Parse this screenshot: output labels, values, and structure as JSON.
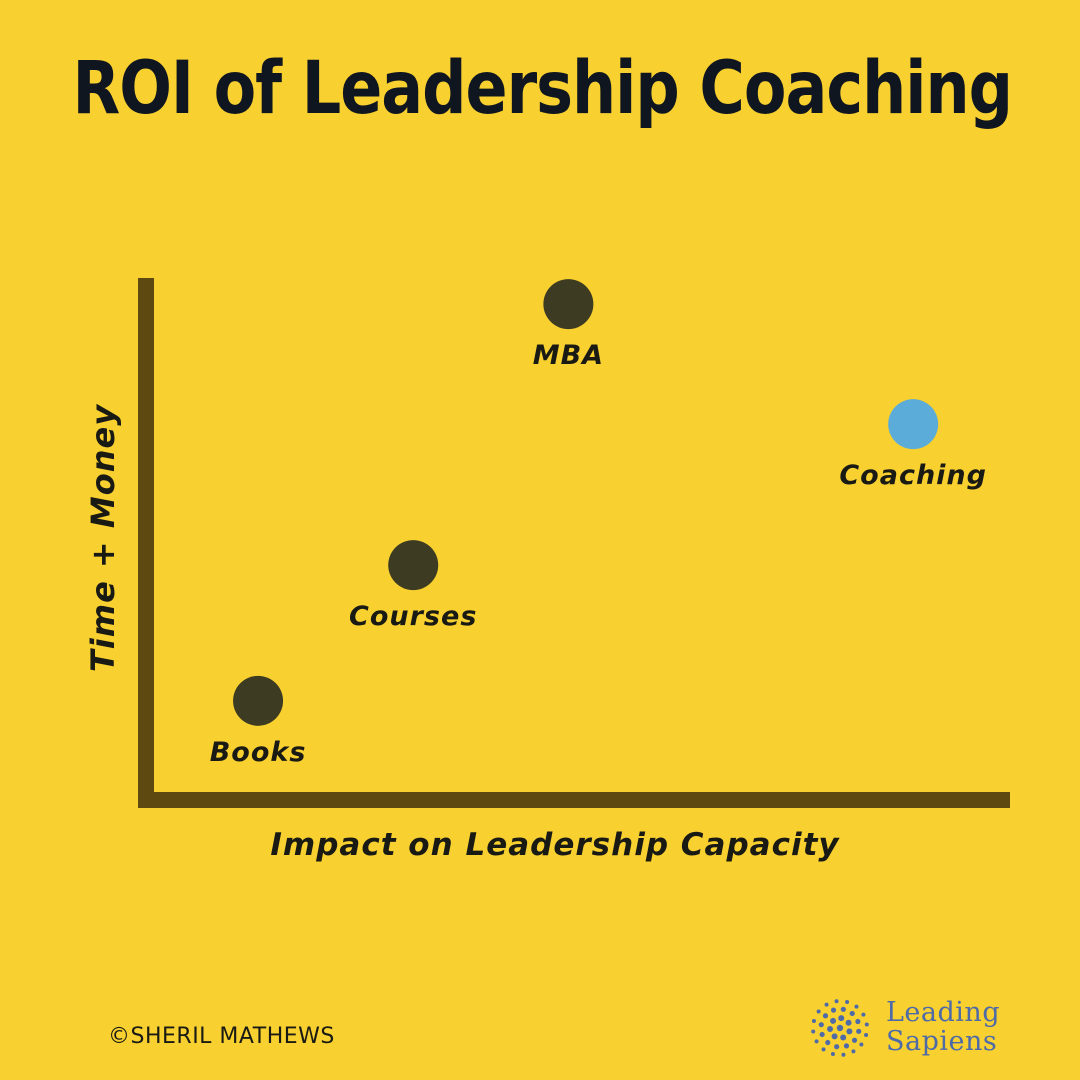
{
  "theme": {
    "background": "#F8D030",
    "title_color": "#0F1620",
    "axis_color": "#5E4A10",
    "point_color": "#3D3B22",
    "highlight_color": "#5BACD8",
    "text_color": "#1A1A14",
    "logo_color": "#4E6BA8"
  },
  "chart_data": {
    "type": "scatter",
    "title": "ROI of Leadership Coaching",
    "xlabel": "Impact on Leadership Capacity",
    "ylabel": "Time + Money",
    "xlim": [
      0,
      100
    ],
    "ylim": [
      0,
      100
    ],
    "grid": false,
    "points": [
      {
        "label": "Books",
        "x": 13,
        "y": 19,
        "highlight": false
      },
      {
        "label": "Courses",
        "x": 31,
        "y": 45,
        "highlight": false
      },
      {
        "label": "MBA",
        "x": 49,
        "y": 95,
        "highlight": false
      },
      {
        "label": "Coaching",
        "x": 89,
        "y": 72,
        "highlight": true
      }
    ]
  },
  "footer": {
    "copyright": "©SHERIL MATHEWS",
    "logo_line1": "Leading",
    "logo_line2": "Sapiens",
    "logo_icon": "dot-circle-icon"
  }
}
